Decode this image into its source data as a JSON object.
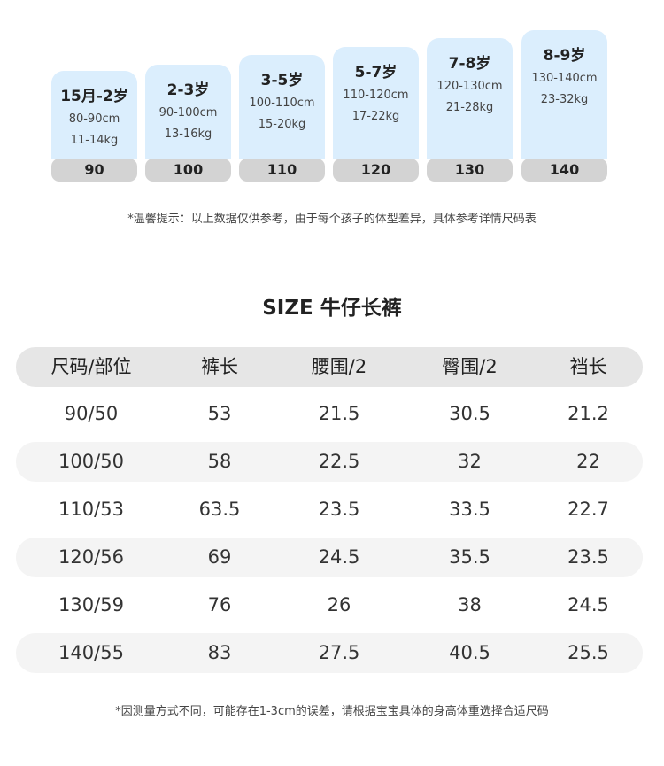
{
  "size_steps": [
    {
      "age": "15月-2岁",
      "height": "80-90cm",
      "weight": "11-14kg",
      "size": "90"
    },
    {
      "age": "2-3岁",
      "height": "90-100cm",
      "weight": "13-16kg",
      "size": "100"
    },
    {
      "age": "3-5岁",
      "height": "100-110cm",
      "weight": "15-20kg",
      "size": "110"
    },
    {
      "age": "5-7岁",
      "height": "110-120cm",
      "weight": "17-22kg",
      "size": "120"
    },
    {
      "age": "7-8岁",
      "height": "120-130cm",
      "weight": "21-28kg",
      "size": "130"
    },
    {
      "age": "8-9岁",
      "height": "130-140cm",
      "weight": "23-32kg",
      "size": "140"
    }
  ],
  "tip_top": "*温馨提示：以上数据仅供参考，由于每个孩子的体型差异，具体参考详情尺码表",
  "table_title": "SIZE 牛仔长裤",
  "table": {
    "headers": [
      "尺码/部位",
      "裤长",
      "腰围/2",
      "臀围/2",
      "裆长"
    ],
    "rows": [
      [
        "90/50",
        "53",
        "21.5",
        "30.5",
        "21.2"
      ],
      [
        "100/50",
        "58",
        "22.5",
        "32",
        "22"
      ],
      [
        "110/53",
        "63.5",
        "23.5",
        "33.5",
        "22.7"
      ],
      [
        "120/56",
        "69",
        "24.5",
        "35.5",
        "23.5"
      ],
      [
        "130/59",
        "76",
        "26",
        "38",
        "24.5"
      ],
      [
        "140/55",
        "83",
        "27.5",
        "40.5",
        "25.5"
      ]
    ]
  },
  "tip_bottom": "*因测量方式不同，可能存在1-3cm的误差，请根据宝宝具体的身高体重选择合适尺码",
  "colors": {
    "card": "#dbeefd",
    "badge": "#d3d3d3",
    "header_row": "#e6e6e6",
    "shade_row": "#f4f4f4"
  }
}
